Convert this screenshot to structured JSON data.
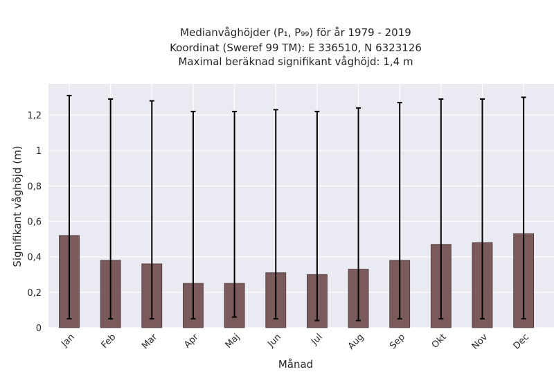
{
  "chart_data": {
    "type": "bar",
    "title_lines": [
      "Medianvåghöjder (P₁, P₉₉) för år 1979 - 2019",
      "Koordinat (Sweref 99 TM): E 336510, N 6323126",
      "Maximal beräknad signifikant våghöjd: 1,4 m"
    ],
    "xlabel": "Månad",
    "ylabel": "Signifikant våghöjd (m)",
    "categories": [
      "Jan",
      "Feb",
      "Mar",
      "Apr",
      "Maj",
      "Jun",
      "Jul",
      "Aug",
      "Sep",
      "Okt",
      "Nov",
      "Dec"
    ],
    "values": [
      0.52,
      0.38,
      0.36,
      0.25,
      0.25,
      0.31,
      0.3,
      0.33,
      0.38,
      0.47,
      0.48,
      0.53
    ],
    "error_low": [
      0.05,
      0.05,
      0.05,
      0.05,
      0.06,
      0.05,
      0.04,
      0.04,
      0.05,
      0.05,
      0.05,
      0.05
    ],
    "error_high": [
      1.31,
      1.29,
      1.28,
      1.22,
      1.22,
      1.23,
      1.22,
      1.24,
      1.27,
      1.29,
      1.29,
      1.3
    ],
    "yticks": [
      0,
      0.2,
      0.4,
      0.6,
      0.8,
      1,
      1.2
    ],
    "ytick_labels": [
      "0",
      "0,2",
      "0,4",
      "0,6",
      "0,8",
      "1",
      "1,2"
    ],
    "ylim": [
      0,
      1.376
    ],
    "grid": true,
    "colors": {
      "bar": "#7a5a5a",
      "bar_edge": "#4a3535",
      "error_bar": "#000000",
      "plot_bg": "#eaeaf2",
      "grid": "#ffffff"
    }
  }
}
